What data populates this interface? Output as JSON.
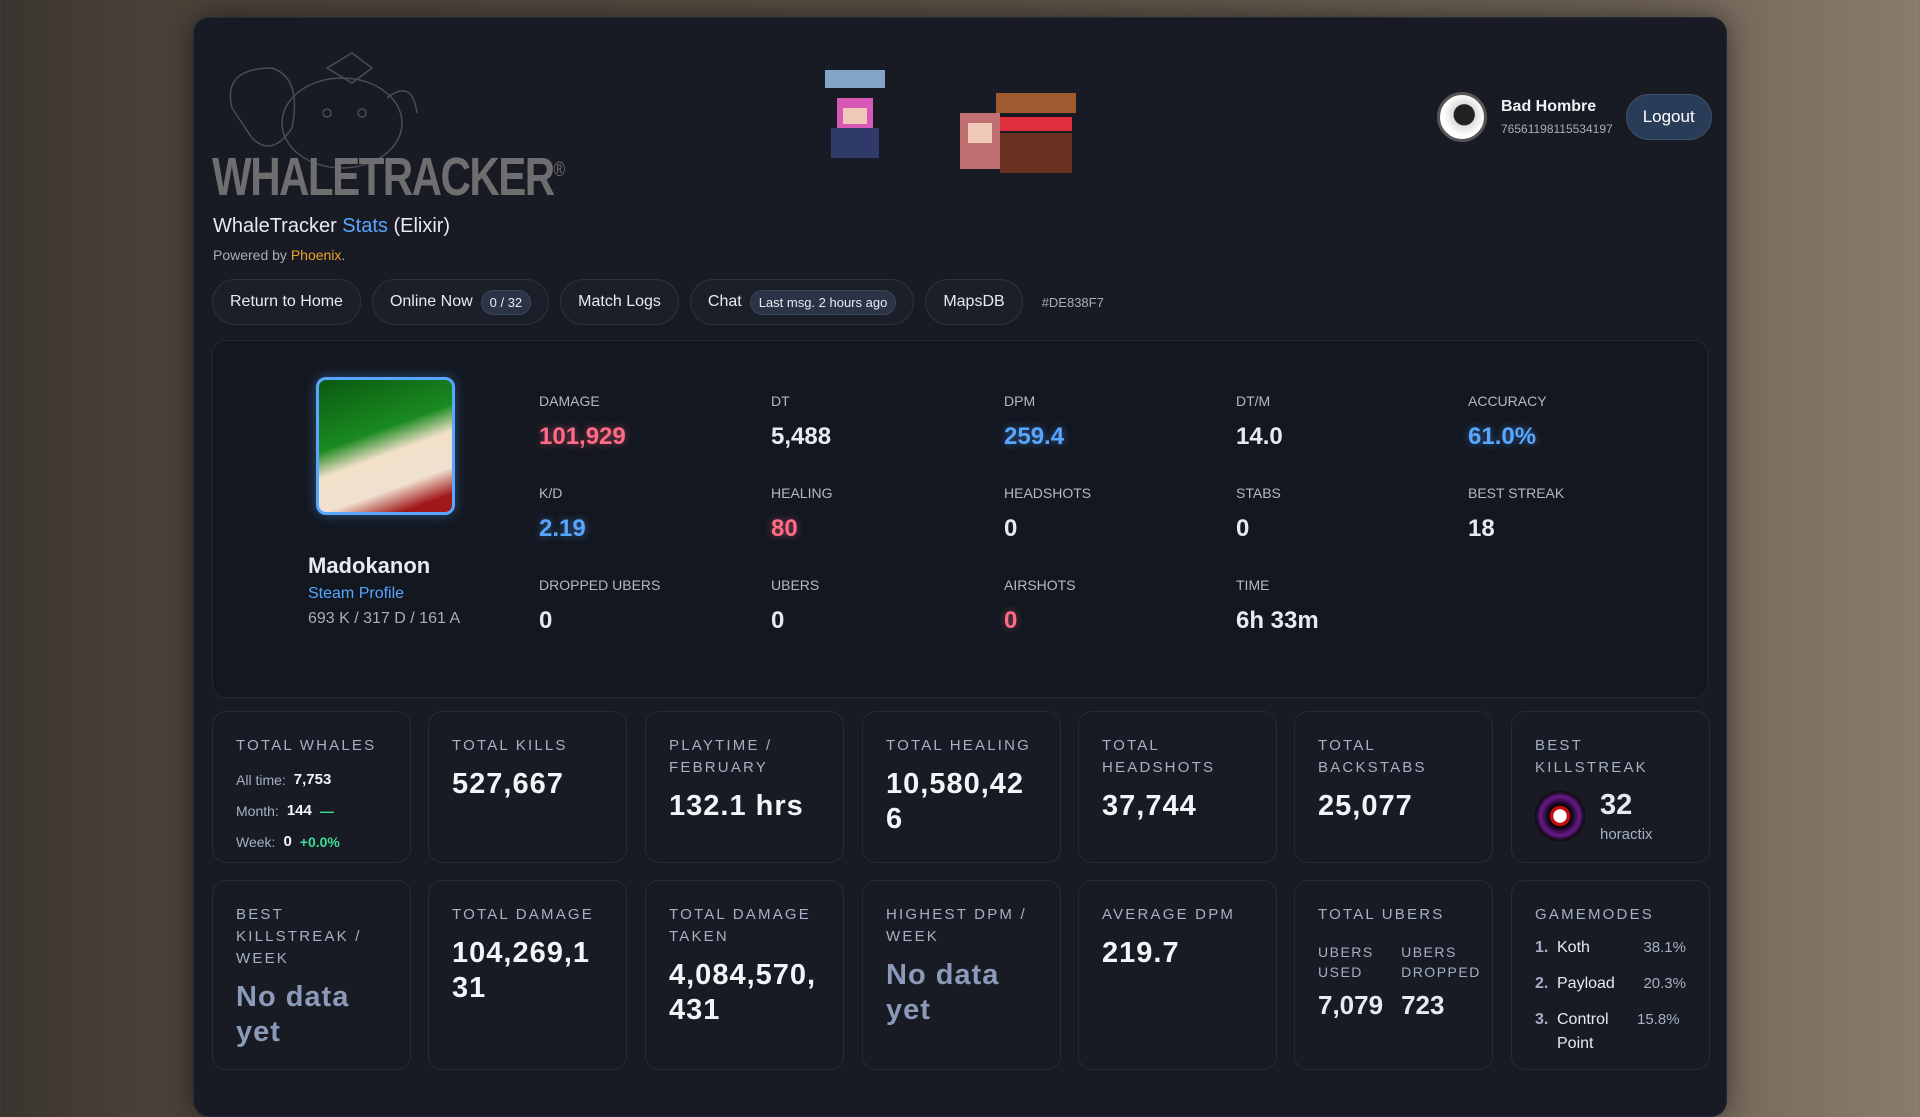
{
  "brand": {
    "logo_text": "WHALETRACKER",
    "registered": "®",
    "title_prefix": "WhaleTracker",
    "title_accent": "Stats",
    "title_suffix": "(Elixir)",
    "powered_prefix": "Powered by",
    "powered_link": "Phoenix",
    "powered_suffix": "."
  },
  "user": {
    "name": "Bad Hombre",
    "steam_id": "76561198115534197",
    "logout_label": "Logout"
  },
  "nav": {
    "home": "Return to Home",
    "online": "Online Now",
    "online_count": "0 / 32",
    "match_logs": "Match Logs",
    "chat": "Chat",
    "chat_last": "Last msg. 2 hours ago",
    "maps": "MapsDB",
    "hash": "#DE838F7"
  },
  "profile": {
    "name": "Madokanon",
    "steam_link": "Steam Profile",
    "kda": "693 K / 317 D / 161 A",
    "stats": [
      {
        "label": "DAMAGE",
        "value": "101,929",
        "color": "red"
      },
      {
        "label": "DT",
        "value": "5,488",
        "color": "white"
      },
      {
        "label": "DPM",
        "value": "259.4",
        "color": "blue"
      },
      {
        "label": "DT/M",
        "value": "14.0",
        "color": "white"
      },
      {
        "label": "ACCURACY",
        "value": "61.0%",
        "color": "blue"
      },
      {
        "label": "K/D",
        "value": "2.19",
        "color": "blue"
      },
      {
        "label": "HEALING",
        "value": "80",
        "color": "red"
      },
      {
        "label": "HEADSHOTS",
        "value": "0",
        "color": "white"
      },
      {
        "label": "STABS",
        "value": "0",
        "color": "white"
      },
      {
        "label": "BEST STREAK",
        "value": "18",
        "color": "white"
      },
      {
        "label": "DROPPED UBERS",
        "value": "0",
        "color": "white"
      },
      {
        "label": "UBERS",
        "value": "0",
        "color": "white"
      },
      {
        "label": "AIRSHOTS",
        "value": "0",
        "color": "red"
      },
      {
        "label": "TIME",
        "value": "6h 33m",
        "color": "white"
      }
    ]
  },
  "cards": {
    "whales": {
      "label": "TOTAL WHALES",
      "all_time_label": "All time:",
      "all_time": "7,753",
      "month_label": "Month:",
      "month": "144",
      "month_trend": "—",
      "week_label": "Week:",
      "week": "0",
      "week_trend": "+0.0%"
    },
    "kills": {
      "label": "TOTAL KILLS",
      "value": "527,667"
    },
    "playtime": {
      "label": "PLAYTIME / FEBRUARY",
      "value": "132.1 hrs"
    },
    "healing": {
      "label": "TOTAL HEALING",
      "value": "10,580,426"
    },
    "headshots": {
      "label": "TOTAL HEADSHOTS",
      "value": "37,744"
    },
    "backstabs": {
      "label": "TOTAL BACKSTABS",
      "value": "25,077"
    },
    "best_ks": {
      "label": "BEST KILLSTREAK",
      "value": "32",
      "player": "horactix"
    },
    "best_ks_week": {
      "label": "BEST KILLSTREAK / WEEK",
      "value": "No data yet"
    },
    "damage": {
      "label": "TOTAL DAMAGE",
      "value": "104,269,131"
    },
    "damage_taken": {
      "label": "TOTAL DAMAGE TAKEN",
      "value": "4,084,570,431"
    },
    "highest_dpm": {
      "label": "HIGHEST DPM / WEEK",
      "value": "No data yet"
    },
    "avg_dpm": {
      "label": "AVERAGE DPM",
      "value": "219.7"
    },
    "ubers": {
      "label": "TOTAL UBERS",
      "used_label": "UBERS USED",
      "used": "7,079",
      "dropped_label": "UBERS DROPPED",
      "dropped": "723"
    },
    "gamemodes": {
      "label": "GAMEMODES",
      "items": [
        {
          "rank": "1.",
          "name": "Koth",
          "pct": "38.1%"
        },
        {
          "rank": "2.",
          "name": "Payload",
          "pct": "20.3%"
        },
        {
          "rank": "3.",
          "name": "Control Point",
          "pct": "15.8%"
        }
      ]
    }
  },
  "colors": {
    "accent": "#58a6ff",
    "red": "#ff6b86",
    "green": "#3ddc97",
    "phoenix": "#f0a030",
    "panel": "#181b24"
  }
}
